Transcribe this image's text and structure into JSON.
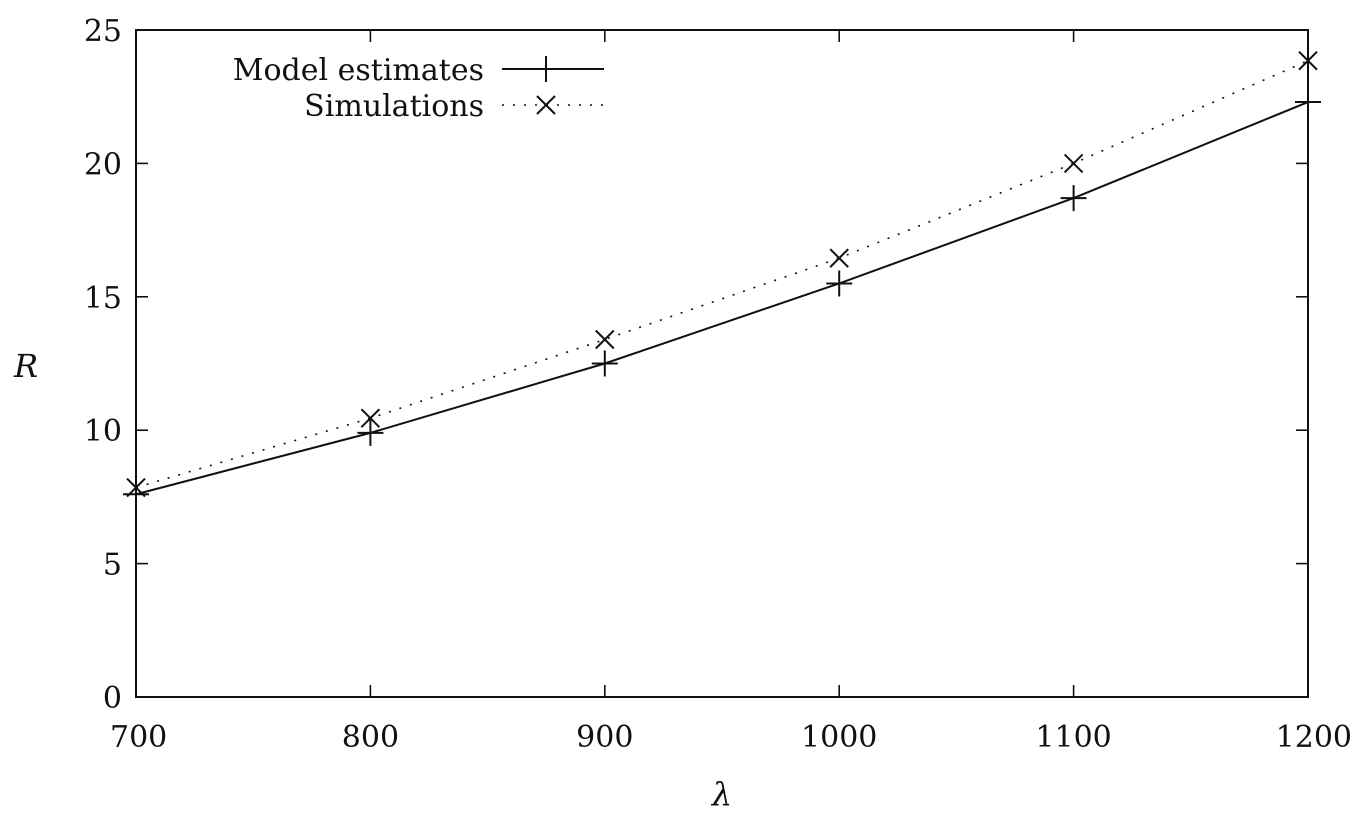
{
  "chart_data": {
    "type": "line",
    "xlabel": "λ",
    "ylabel": "R",
    "xlim": [
      700,
      1200
    ],
    "ylim": [
      0,
      25
    ],
    "x_ticks": [
      "700",
      "800",
      "900",
      "1000",
      "1100",
      "1200"
    ],
    "y_ticks": [
      "0",
      "5",
      "10",
      "15",
      "20",
      "25"
    ],
    "grid": false,
    "legend_position": "top-left",
    "x": [
      700,
      800,
      900,
      1000,
      1100,
      1200
    ],
    "series": [
      {
        "name": "Model estimates",
        "marker": "plus",
        "line": "solid",
        "values": [
          7.6,
          9.9,
          12.5,
          15.5,
          18.7,
          22.3
        ]
      },
      {
        "name": "Simulations",
        "marker": "cross",
        "line": "dotted",
        "values": [
          7.85,
          10.45,
          13.4,
          16.45,
          20.0,
          23.85
        ]
      }
    ]
  }
}
